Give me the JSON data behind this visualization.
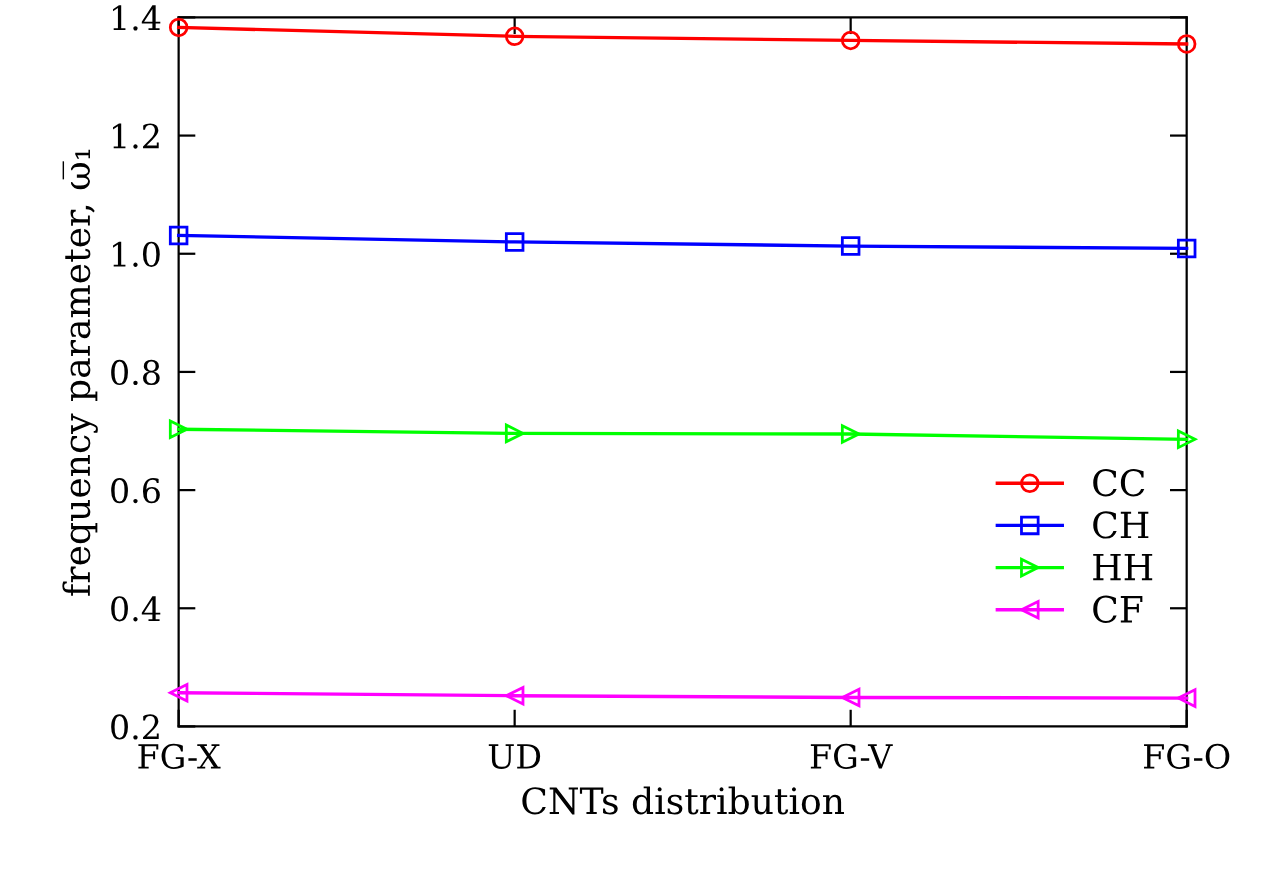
{
  "chart_data": {
    "type": "line",
    "xlabel": "CNTs distribution",
    "ylabel": "frequency parameter, ω̅₁",
    "categories": [
      "FG-X",
      "UD",
      "FG-V",
      "FG-O"
    ],
    "series": [
      {
        "name": "CC",
        "color": "#ff0000",
        "marker": "circle",
        "values": [
          1.383,
          1.368,
          1.361,
          1.355
        ]
      },
      {
        "name": "CH",
        "color": "#0000ff",
        "marker": "square",
        "values": [
          1.031,
          1.02,
          1.013,
          1.009
        ]
      },
      {
        "name": "HH",
        "color": "#00ff00",
        "marker": "triangle_right",
        "values": [
          0.703,
          0.696,
          0.695,
          0.686
        ]
      },
      {
        "name": "CF",
        "color": "#ff00ff",
        "marker": "triangle_left",
        "values": [
          0.257,
          0.252,
          0.249,
          0.248
        ]
      }
    ],
    "ylim": [
      0.2,
      1.4
    ],
    "yticks": [
      {
        "value": 0.2,
        "label": "0.2"
      },
      {
        "value": 0.4,
        "label": "0.4"
      },
      {
        "value": 0.6,
        "label": "0.6"
      },
      {
        "value": 0.8,
        "label": "0.8"
      },
      {
        "value": 1.0,
        "label": "1.0"
      },
      {
        "value": 1.2,
        "label": "1.2"
      },
      {
        "value": 1.4,
        "label": "1.4"
      }
    ],
    "grid": false,
    "legend": "right",
    "line_style": "solid"
  }
}
